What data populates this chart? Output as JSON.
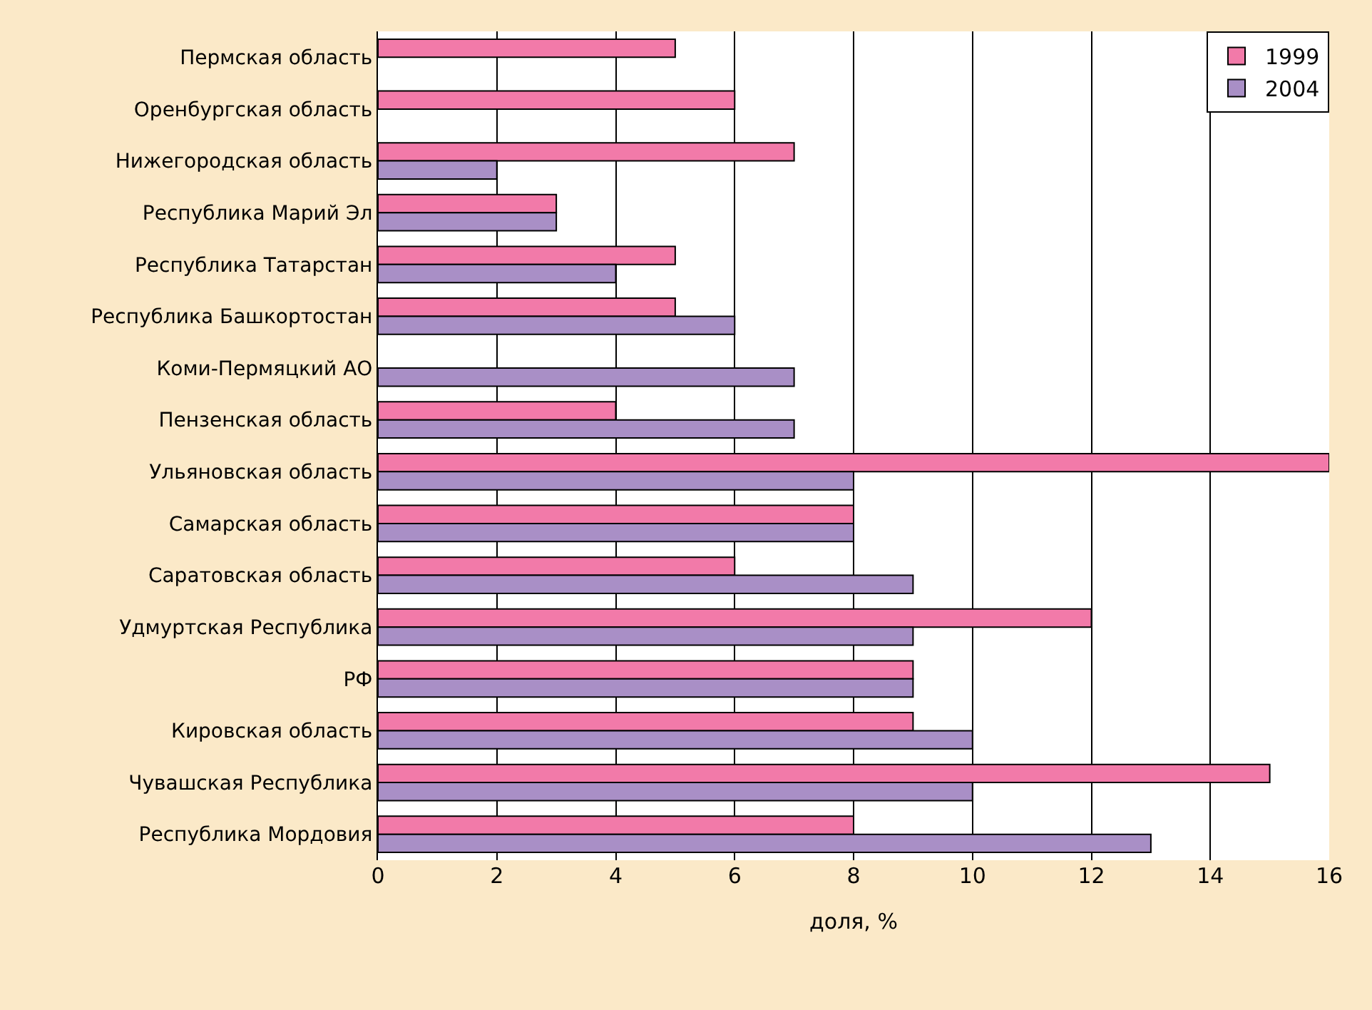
{
  "chart_data": {
    "type": "bar",
    "orientation": "horizontal",
    "xlabel": "доля, %",
    "categories": [
      "Пермская область",
      "Оренбургская область",
      "Нижегородская область",
      "Республика Марий Эл",
      "Республика Татарстан",
      "Республика Башкортостан",
      "Коми-Пермяцкий АО",
      "Пензенская область",
      "Ульяновская область",
      "Самарская область",
      "Саратовская область",
      "Удмуртская Республика",
      "РФ",
      "Кировская область",
      "Чувашская Республика",
      "Республика Мордовия"
    ],
    "series": [
      {
        "name": "1999",
        "color": "#f27aa9",
        "values": [
          5,
          6,
          7,
          3,
          5,
          5,
          null,
          4,
          16,
          8,
          6,
          12,
          9,
          9,
          15,
          8
        ]
      },
      {
        "name": "2004",
        "color": "#a98fc6",
        "values": [
          null,
          null,
          2,
          3,
          4,
          6,
          7,
          7,
          8,
          8,
          9,
          9,
          9,
          10,
          10,
          13
        ]
      }
    ],
    "xlim": [
      0,
      16
    ],
    "xticks": [
      0,
      2,
      4,
      6,
      8,
      10,
      12,
      14,
      16
    ],
    "grid": "x",
    "legend": "top right"
  }
}
